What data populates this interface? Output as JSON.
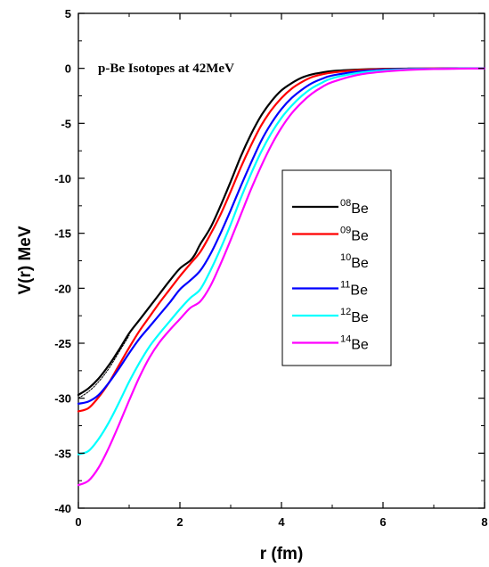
{
  "chart_data": {
    "type": "line",
    "annotation": "p-Be Isotopes at 42MeV",
    "xlabel": "r (fm)",
    "ylabel": "V(r) MeV",
    "xlim": [
      0,
      8
    ],
    "ylim": [
      -40,
      5
    ],
    "xticks": [
      "0",
      "2",
      "4",
      "6",
      "8"
    ],
    "yticks": [
      "5",
      "0",
      "-5",
      "-10",
      "-15",
      "-20",
      "-25",
      "-30",
      "-35",
      "-40"
    ],
    "grid": false,
    "legend_position": "center-right",
    "series": [
      {
        "name": "08",
        "suffix": "Be",
        "color": "#000000",
        "x": [
          0,
          0.2,
          0.4,
          0.6,
          0.8,
          1.0,
          1.2,
          1.4,
          1.6,
          1.8,
          2.0,
          2.2,
          2.3,
          2.4,
          2.6,
          2.8,
          3.0,
          3.2,
          3.4,
          3.6,
          3.8,
          4.0,
          4.2,
          4.4,
          4.6,
          4.8,
          5.0,
          5.5,
          6.0,
          6.5,
          7.0,
          7.5,
          8.0
        ],
        "y": [
          -29.7,
          -29.1,
          -28.2,
          -27.0,
          -25.6,
          -24.1,
          -22.9,
          -21.7,
          -20.5,
          -19.3,
          -18.2,
          -17.5,
          -16.9,
          -16.0,
          -14.5,
          -12.5,
          -10.3,
          -8.0,
          -6.0,
          -4.3,
          -3.0,
          -2.0,
          -1.35,
          -0.85,
          -0.55,
          -0.38,
          -0.25,
          -0.12,
          -0.05,
          -0.02,
          -0.01,
          0.0,
          0.0
        ]
      },
      {
        "name": "09",
        "suffix": "Be",
        "color": "#ff0000",
        "x": [
          0,
          0.2,
          0.4,
          0.6,
          0.8,
          1.0,
          1.2,
          1.4,
          1.6,
          1.8,
          2.0,
          2.2,
          2.4,
          2.6,
          2.8,
          3.0,
          3.2,
          3.4,
          3.6,
          3.8,
          4.0,
          4.2,
          4.4,
          4.6,
          4.8,
          5.0,
          5.5,
          6.0,
          6.5,
          7.0,
          7.5,
          8.0
        ],
        "y": [
          -31.2,
          -30.9,
          -29.9,
          -28.6,
          -27.0,
          -25.4,
          -23.9,
          -22.6,
          -21.3,
          -20.1,
          -18.9,
          -17.8,
          -16.7,
          -15.1,
          -13.3,
          -11.2,
          -9.0,
          -7.0,
          -5.2,
          -3.8,
          -2.7,
          -1.85,
          -1.25,
          -0.8,
          -0.55,
          -0.38,
          -0.18,
          -0.08,
          -0.04,
          -0.02,
          -0.01,
          0.0
        ]
      },
      {
        "name": "10",
        "suffix": "Be",
        "color": "#000000",
        "x": [
          0,
          0.2,
          0.4,
          0.6,
          0.8,
          1.0
        ],
        "y": [
          -30.0,
          -29.4,
          -28.5,
          -27.3,
          -25.8,
          -24.3
        ]
      },
      {
        "name": "11",
        "suffix": "Be",
        "color": "#0000ff",
        "x": [
          0,
          0.2,
          0.4,
          0.6,
          0.8,
          1.0,
          1.2,
          1.4,
          1.6,
          1.8,
          2.0,
          2.2,
          2.4,
          2.6,
          2.8,
          3.0,
          3.2,
          3.4,
          3.6,
          3.8,
          4.0,
          4.2,
          4.4,
          4.6,
          4.8,
          5.0,
          5.5,
          6.0,
          6.5,
          7.0,
          7.5,
          8.0
        ],
        "y": [
          -30.5,
          -30.3,
          -29.7,
          -28.6,
          -27.3,
          -25.9,
          -24.6,
          -23.5,
          -22.4,
          -21.3,
          -20.1,
          -19.3,
          -18.4,
          -16.9,
          -15.0,
          -12.9,
          -10.7,
          -8.6,
          -6.6,
          -5.0,
          -3.7,
          -2.7,
          -1.95,
          -1.35,
          -0.95,
          -0.65,
          -0.3,
          -0.13,
          -0.06,
          -0.03,
          -0.01,
          0.0
        ]
      },
      {
        "name": "12",
        "suffix": "Be",
        "color": "#00ffff",
        "x": [
          0,
          0.2,
          0.4,
          0.6,
          0.8,
          1.0,
          1.2,
          1.4,
          1.6,
          1.8,
          2.0,
          2.2,
          2.4,
          2.6,
          2.8,
          3.0,
          3.2,
          3.4,
          3.6,
          3.8,
          4.0,
          4.2,
          4.4,
          4.6,
          4.8,
          5.0,
          5.5,
          6.0,
          6.5,
          7.0,
          7.5,
          8.0
        ],
        "y": [
          -35.1,
          -34.8,
          -33.7,
          -32.2,
          -30.4,
          -28.5,
          -26.8,
          -25.3,
          -24.1,
          -23.0,
          -21.9,
          -20.9,
          -20.1,
          -18.4,
          -16.4,
          -14.2,
          -11.8,
          -9.6,
          -7.6,
          -5.9,
          -4.5,
          -3.4,
          -2.5,
          -1.8,
          -1.3,
          -0.9,
          -0.42,
          -0.2,
          -0.09,
          -0.04,
          -0.02,
          -0.01
        ]
      },
      {
        "name": "14",
        "suffix": "Be",
        "color": "#ff00ff",
        "x": [
          0,
          0.2,
          0.4,
          0.6,
          0.8,
          1.0,
          1.2,
          1.4,
          1.6,
          1.8,
          2.0,
          2.2,
          2.4,
          2.6,
          2.8,
          3.0,
          3.2,
          3.4,
          3.6,
          3.8,
          4.0,
          4.2,
          4.4,
          4.6,
          4.8,
          5.0,
          5.5,
          6.0,
          6.5,
          7.0,
          7.5,
          8.0
        ],
        "y": [
          -37.9,
          -37.5,
          -36.3,
          -34.5,
          -32.4,
          -30.2,
          -28.1,
          -26.3,
          -24.9,
          -23.8,
          -22.8,
          -21.8,
          -21.2,
          -19.8,
          -17.8,
          -15.6,
          -13.3,
          -11.0,
          -8.9,
          -7.0,
          -5.4,
          -4.1,
          -3.1,
          -2.3,
          -1.7,
          -1.25,
          -0.6,
          -0.3,
          -0.14,
          -0.06,
          -0.03,
          -0.01
        ]
      }
    ]
  }
}
